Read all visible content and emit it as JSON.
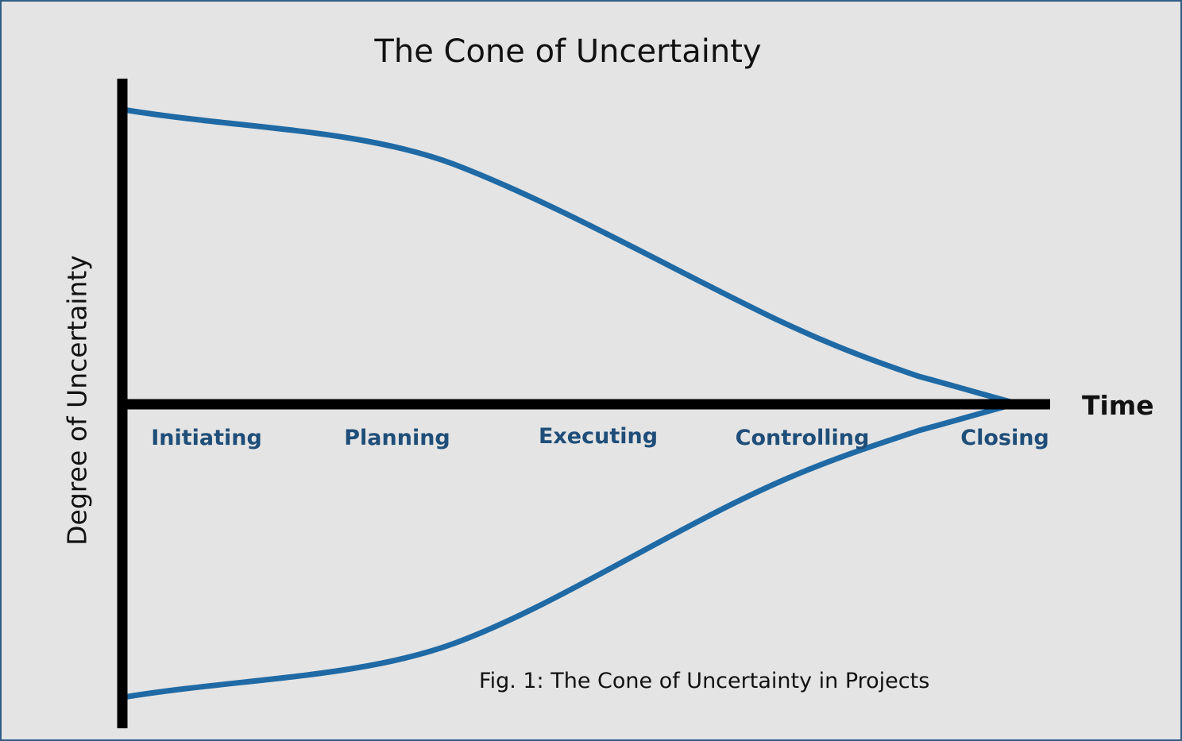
{
  "diagram": {
    "title": "The Cone of Uncertainty",
    "y_axis_label": "Degree of Uncertainty",
    "x_axis_label": "Time",
    "phases": [
      "Initiating",
      "Planning",
      "Executing",
      "Controlling",
      "Closing"
    ],
    "caption": "Fig. 1: The Cone of Uncertainty in Projects",
    "colors": {
      "cone": "#1f6aa5",
      "axes": "#000000",
      "phase_text": "#1f4e79",
      "background": "#e4e4e4"
    }
  }
}
